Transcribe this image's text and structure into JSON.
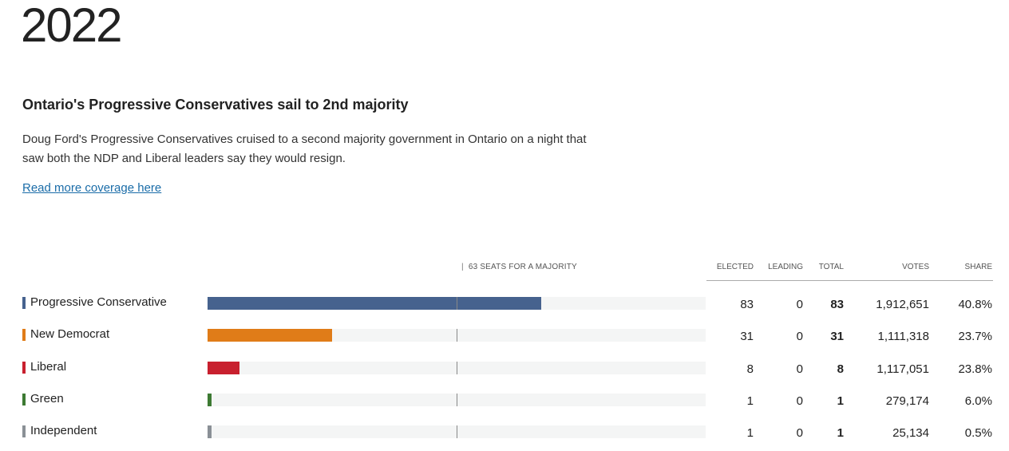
{
  "page": {
    "year": "2022",
    "headline": "Ontario's Progressive Conservatives sail to 2nd majority",
    "deck": "Doug Ford's Progressive Conservatives cruised to a second majority government in Ontario on a night that saw both the NDP and Liberal leaders say they would resign.",
    "link_text": "Read more coverage here"
  },
  "chart_data": {
    "type": "bar",
    "title": "",
    "majority_label": "63 SEATS FOR A MAJORITY",
    "majority_seats": 63,
    "total_seats": 124,
    "columns": [
      "ELECTED",
      "LEADING",
      "TOTAL",
      "VOTES",
      "SHARE"
    ],
    "categories": [
      "Progressive Conservative",
      "New Democrat",
      "Liberal",
      "Green",
      "Independent"
    ],
    "colors": [
      "#46628e",
      "#e07c18",
      "#c8202e",
      "#3d7a33",
      "#8a9096"
    ],
    "values": [
      83,
      31,
      8,
      1,
      1
    ],
    "rows": [
      {
        "party": "Progressive Conservative",
        "elected": "83",
        "leading": "0",
        "total": "83",
        "votes": "1,912,651",
        "share": "40.8%"
      },
      {
        "party": "New Democrat",
        "elected": "31",
        "leading": "0",
        "total": "31",
        "votes": "1,111,318",
        "share": "23.7%"
      },
      {
        "party": "Liberal",
        "elected": "8",
        "leading": "0",
        "total": "8",
        "votes": "1,117,051",
        "share": "23.8%"
      },
      {
        "party": "Green",
        "elected": "1",
        "leading": "0",
        "total": "1",
        "votes": "279,174",
        "share": "6.0%"
      },
      {
        "party": "Independent",
        "elected": "1",
        "leading": "0",
        "total": "1",
        "votes": "25,134",
        "share": "0.5%"
      }
    ]
  }
}
